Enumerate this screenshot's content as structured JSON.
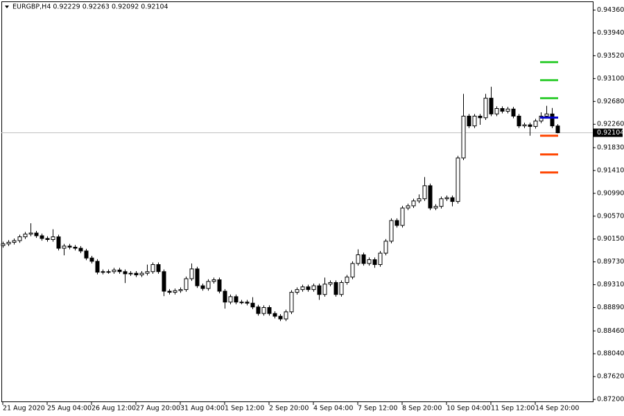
{
  "chart_data": {
    "type": "candlestick",
    "header": "EURGBP,H4  0.92229 0.92263 0.92092 0.92104",
    "categories": [
      "21 Aug 2020",
      null,
      null,
      null,
      null,
      null,
      null,
      null,
      "25 Aug 04:00",
      null,
      null,
      null,
      null,
      null,
      null,
      null,
      "26 Aug 12:00",
      null,
      null,
      null,
      null,
      null,
      null,
      null,
      "27 Aug 20:00",
      null,
      null,
      null,
      null,
      null,
      null,
      null,
      "31 Aug 04:00",
      null,
      null,
      null,
      null,
      null,
      null,
      null,
      "1 Sep 12:00",
      null,
      null,
      null,
      null,
      null,
      null,
      null,
      "2 Sep 20:00",
      null,
      null,
      null,
      null,
      null,
      null,
      null,
      "4 Sep 04:00",
      null,
      null,
      null,
      null,
      null,
      null,
      null,
      "7 Sep 12:00",
      null,
      null,
      null,
      null,
      null,
      null,
      null,
      "8 Sep 20:00",
      null,
      null,
      null,
      null,
      null,
      null,
      null,
      "10 Sep 04:00",
      null,
      null,
      null,
      null,
      null,
      null,
      null,
      "11 Sep 12:00",
      null,
      null,
      null,
      null,
      null,
      null,
      null,
      "14 Sep 20:00",
      null,
      null,
      null,
      null
    ],
    "open": [
      0.9003,
      0.9006,
      0.9009,
      0.9012,
      0.9019,
      0.9024,
      0.9026,
      0.9021,
      0.9016,
      0.9014,
      0.9019,
      0.8998,
      0.9002,
      0.9,
      0.8998,
      0.8993,
      0.898,
      0.8974,
      0.8954,
      0.8955,
      0.8955,
      0.8958,
      0.8955,
      0.8951,
      0.8952,
      0.8949,
      0.8952,
      0.8955,
      0.8968,
      0.8955,
      0.8919,
      0.8917,
      0.892,
      0.8922,
      0.8942,
      0.896,
      0.8929,
      0.8924,
      0.8937,
      0.894,
      0.8919,
      0.8899,
      0.8909,
      0.8899,
      0.8899,
      0.8897,
      0.889,
      0.8878,
      0.8889,
      0.8878,
      0.8873,
      0.8868,
      0.8881,
      0.8917,
      0.8922,
      0.8927,
      0.8922,
      0.8929,
      0.8913,
      0.8932,
      0.8935,
      0.8913,
      0.8935,
      0.8945,
      0.897,
      0.8986,
      0.897,
      0.8977,
      0.8968,
      0.8989,
      0.9011,
      0.9049,
      0.904,
      0.9072,
      0.9076,
      0.9085,
      0.9089,
      0.9113,
      0.9072,
      0.9075,
      0.9089,
      0.9091,
      0.9084,
      0.9164,
      0.9241,
      0.9223,
      0.9241,
      0.9238,
      0.9274,
      0.9245,
      0.9255,
      0.925,
      0.9254,
      0.9241,
      0.9223,
      0.9225,
      0.9222,
      0.9232,
      0.9241,
      0.9245,
      0.92229
    ],
    "high": [
      0.901,
      0.9013,
      0.9016,
      0.9023,
      0.9028,
      0.9044,
      0.903,
      0.9025,
      0.902,
      0.9033,
      0.9023,
      0.9006,
      0.9006,
      0.9004,
      0.9002,
      0.8997,
      0.8984,
      0.8978,
      0.8959,
      0.8959,
      0.8962,
      0.8962,
      0.8959,
      0.8956,
      0.8956,
      0.8956,
      0.8968,
      0.8972,
      0.8972,
      0.8959,
      0.8923,
      0.8924,
      0.8926,
      0.8946,
      0.897,
      0.8964,
      0.8933,
      0.8941,
      0.8944,
      0.8944,
      0.8923,
      0.8913,
      0.8913,
      0.8903,
      0.8903,
      0.8908,
      0.8894,
      0.8893,
      0.8893,
      0.8882,
      0.8877,
      0.8885,
      0.8921,
      0.8926,
      0.8931,
      0.8931,
      0.8933,
      0.8933,
      0.8944,
      0.8939,
      0.8939,
      0.8939,
      0.8949,
      0.8974,
      0.8996,
      0.899,
      0.8981,
      0.8981,
      0.8993,
      0.9015,
      0.9053,
      0.9053,
      0.9076,
      0.908,
      0.9089,
      0.9097,
      0.9129,
      0.9117,
      0.9079,
      0.9093,
      0.9095,
      0.9095,
      0.9168,
      0.9282,
      0.9245,
      0.9245,
      0.9245,
      0.9282,
      0.9295,
      0.9259,
      0.9259,
      0.9258,
      0.9258,
      0.9245,
      0.9229,
      0.9229,
      0.9236,
      0.9248,
      0.926,
      0.9256,
      0.92263
    ],
    "low": [
      0.8999,
      0.9002,
      0.9005,
      0.9008,
      0.9015,
      0.902,
      0.9017,
      0.9012,
      0.901,
      0.901,
      0.8994,
      0.8985,
      0.8996,
      0.8994,
      0.8989,
      0.8976,
      0.897,
      0.895,
      0.895,
      0.8951,
      0.8951,
      0.8951,
      0.8934,
      0.8947,
      0.8945,
      0.8945,
      0.8948,
      0.8951,
      0.8951,
      0.891,
      0.8913,
      0.8913,
      0.8916,
      0.8918,
      0.8938,
      0.8925,
      0.892,
      0.892,
      0.8933,
      0.8915,
      0.8887,
      0.8895,
      0.8895,
      0.8895,
      0.8893,
      0.8886,
      0.8874,
      0.8874,
      0.8874,
      0.8869,
      0.8864,
      0.8864,
      0.8877,
      0.8913,
      0.8918,
      0.8918,
      0.8918,
      0.8903,
      0.8909,
      0.8928,
      0.8909,
      0.8909,
      0.8931,
      0.8941,
      0.8966,
      0.8966,
      0.8966,
      0.8962,
      0.8964,
      0.8985,
      0.9007,
      0.9036,
      0.9036,
      0.9068,
      0.9072,
      0.9081,
      0.9085,
      0.9068,
      0.9068,
      0.9071,
      0.9085,
      0.9075,
      0.908,
      0.916,
      0.9219,
      0.9219,
      0.9225,
      0.9234,
      0.9241,
      0.9241,
      0.9246,
      0.9246,
      0.9237,
      0.9219,
      0.9219,
      0.9205,
      0.9218,
      0.9228,
      0.9237,
      0.9219,
      0.92092
    ],
    "close": [
      0.9006,
      0.9009,
      0.9012,
      0.9019,
      0.9024,
      0.9026,
      0.9021,
      0.9016,
      0.9014,
      0.9019,
      0.8998,
      0.9002,
      0.9,
      0.8998,
      0.8993,
      0.898,
      0.8974,
      0.8954,
      0.8955,
      0.8955,
      0.8958,
      0.8955,
      0.8951,
      0.8952,
      0.8949,
      0.8952,
      0.8955,
      0.8968,
      0.8955,
      0.8919,
      0.8917,
      0.892,
      0.8922,
      0.8942,
      0.896,
      0.8929,
      0.8924,
      0.8937,
      0.894,
      0.8919,
      0.8899,
      0.8909,
      0.8899,
      0.8899,
      0.8897,
      0.889,
      0.8878,
      0.8889,
      0.8878,
      0.8873,
      0.8868,
      0.8881,
      0.8917,
      0.8922,
      0.8927,
      0.8922,
      0.8929,
      0.8913,
      0.8932,
      0.8935,
      0.8913,
      0.8935,
      0.8945,
      0.897,
      0.8986,
      0.897,
      0.8977,
      0.8968,
      0.8989,
      0.9011,
      0.9049,
      0.904,
      0.9072,
      0.9076,
      0.9085,
      0.9089,
      0.9113,
      0.9072,
      0.9075,
      0.9089,
      0.9091,
      0.9084,
      0.9164,
      0.9241,
      0.9223,
      0.9241,
      0.9238,
      0.9274,
      0.9245,
      0.9255,
      0.925,
      0.9254,
      0.9241,
      0.9223,
      0.9225,
      0.9222,
      0.9232,
      0.9241,
      0.9245,
      0.9223,
      0.92104
    ],
    "up_color": "#ffffff",
    "down_color": "#000000",
    "outline_color": "#000000",
    "levels": {
      "values": [
        0.93403,
        0.93071,
        0.9274,
        0.92382,
        0.9205,
        0.91706,
        0.91374
      ],
      "colors": [
        "#32cd32",
        "#32cd32",
        "#32cd32",
        "#0000cd",
        "#ff4500",
        "#ff4500",
        "#ff4500"
      ]
    },
    "last_price": {
      "value": 0.92104,
      "label": "0.92104"
    },
    "ylim": [
      0.8715,
      0.9452
    ],
    "yticks": [
      {
        "value": 0.9436,
        "label": "0.94360"
      },
      {
        "value": 0.9394,
        "label": "0.93940"
      },
      {
        "value": 0.9352,
        "label": "0.93520"
      },
      {
        "value": 0.931,
        "label": "0.93100"
      },
      {
        "value": 0.9268,
        "label": "0.92680"
      },
      {
        "value": 0.9226,
        "label": "0.92260"
      },
      {
        "value": 0.9183,
        "label": "0.91830"
      },
      {
        "value": 0.9141,
        "label": "0.91410"
      },
      {
        "value": 0.9099,
        "label": "0.90990"
      },
      {
        "value": 0.9057,
        "label": "0.90570"
      },
      {
        "value": 0.9015,
        "label": "0.90150"
      },
      {
        "value": 0.8973,
        "label": "0.89730"
      },
      {
        "value": 0.8931,
        "label": "0.89310"
      },
      {
        "value": 0.8889,
        "label": "0.88890"
      },
      {
        "value": 0.8846,
        "label": "0.88460"
      },
      {
        "value": 0.8804,
        "label": "0.88040"
      },
      {
        "value": 0.8762,
        "label": "0.87620"
      },
      {
        "value": 0.872,
        "label": "0.87200"
      }
    ]
  }
}
